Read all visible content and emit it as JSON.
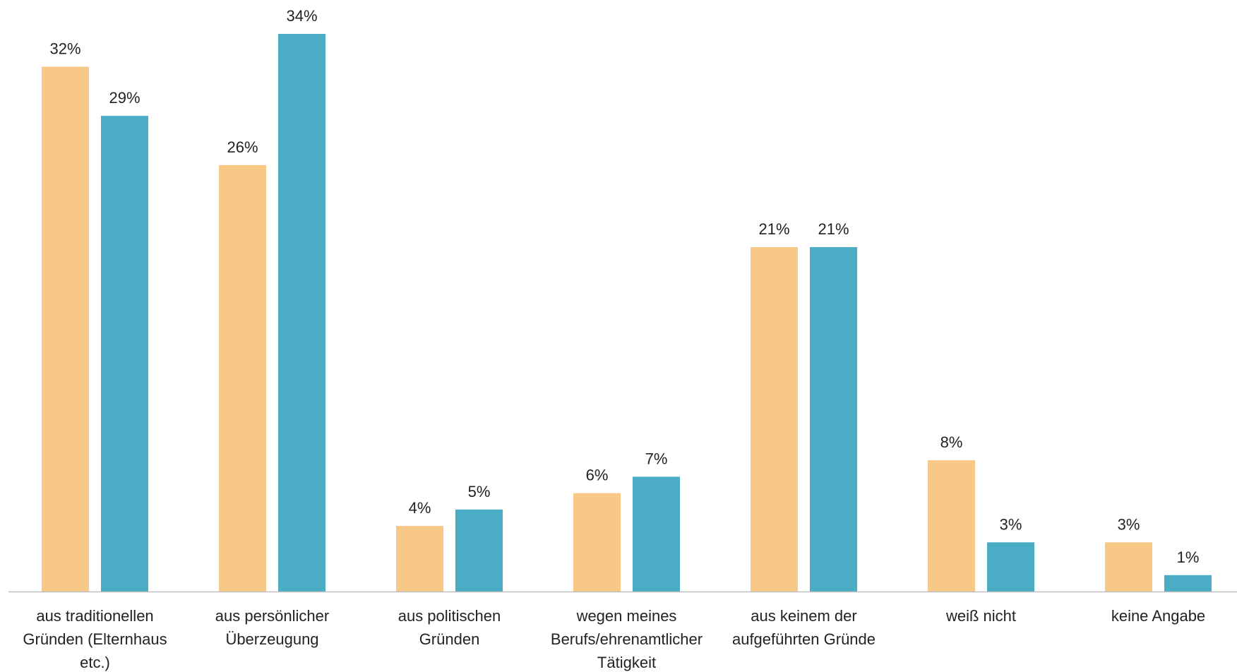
{
  "chart_data": {
    "type": "bar",
    "title": "",
    "xlabel": "",
    "ylabel": "",
    "ylim": [
      0,
      34
    ],
    "grid": false,
    "legend": "none",
    "categories": [
      [
        "aus traditionellen",
        "Gründen (Elternhaus",
        "etc.)"
      ],
      [
        "aus persönlicher",
        "Überzeugung"
      ],
      [
        "aus politischen",
        "Gründen"
      ],
      [
        "wegen meines",
        "Berufs/ehrenamtlicher",
        "Tätigkeit"
      ],
      [
        "aus keinem der",
        "aufgeführten Gründe"
      ],
      [
        "weiß nicht"
      ],
      [
        "keine Angabe"
      ]
    ],
    "series": [
      {
        "color": "#F8C887",
        "values": [
          32,
          26,
          4,
          6,
          21,
          8,
          3
        ],
        "labels": [
          "32%",
          "26%",
          "4%",
          "6%",
          "21%",
          "8%",
          "3%"
        ]
      },
      {
        "color": "#4BACC6",
        "values": [
          29,
          34,
          5,
          7,
          21,
          3,
          1
        ],
        "labels": [
          "29%",
          "34%",
          "5%",
          "7%",
          "21%",
          "3%",
          "1%"
        ]
      }
    ],
    "axis_color": "#BFBFBF"
  }
}
